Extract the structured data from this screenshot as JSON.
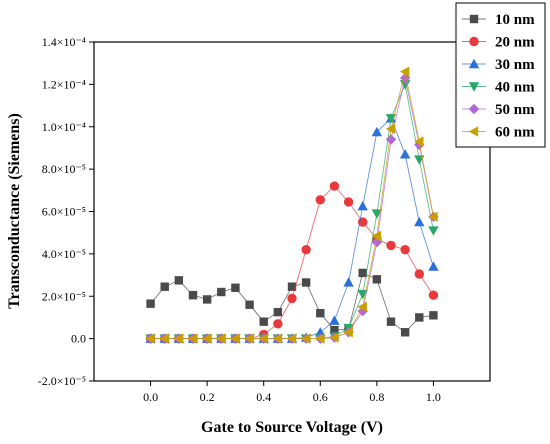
{
  "chart_data": {
    "type": "line",
    "xlabel": "Gate to Source Voltage (V)",
    "ylabel": "Transconductance (Siemens)",
    "xlim": [
      -0.2,
      1.2
    ],
    "ylim": [
      -2e-05,
      0.00014
    ],
    "x_ticks": [
      "0.0",
      "0.2",
      "0.4",
      "0.6",
      "0.8",
      "1.0"
    ],
    "x_tick_values": [
      0.0,
      0.2,
      0.4,
      0.6,
      0.8,
      1.0
    ],
    "y_ticks": [
      "-2.0×10⁻⁵",
      "0.0",
      "2.0×10⁻⁵",
      "4.0×10⁻⁵",
      "6.0×10⁻⁵",
      "8.0×10⁻⁵",
      "1.0×10⁻⁴",
      "1.2×10⁻⁴",
      "1.4×10⁻⁴"
    ],
    "y_tick_values": [
      -2e-05,
      0.0,
      2e-05,
      4e-05,
      6e-05,
      8e-05,
      0.0001,
      0.00012,
      0.00014
    ],
    "legend_position": "top-right",
    "x": [
      0.0,
      0.05,
      0.1,
      0.15,
      0.2,
      0.25,
      0.3,
      0.35,
      0.4,
      0.45,
      0.5,
      0.55,
      0.6,
      0.65,
      0.7,
      0.75,
      0.8,
      0.85,
      0.9,
      0.95,
      1.0
    ],
    "series": [
      {
        "name": "10 nm",
        "color": "#4a4a4a",
        "marker": "square",
        "values": [
          1.65e-05,
          2.45e-05,
          2.75e-05,
          2.05e-05,
          1.85e-05,
          2.2e-05,
          2.4e-05,
          1.6e-05,
          8e-06,
          1.25e-05,
          2.45e-05,
          2.65e-05,
          1.2e-05,
          4e-06,
          4.5e-06,
          3.1e-05,
          2.8e-05,
          8e-06,
          3e-06,
          1e-05,
          1.1e-05
        ]
      },
      {
        "name": "20 nm",
        "color": "#e8393c",
        "marker": "circle",
        "values": [
          0.0,
          0.0,
          0.0,
          0.0,
          0.0,
          0.0,
          0.0,
          0.0,
          2e-06,
          7e-06,
          1.9e-05,
          4.2e-05,
          6.55e-05,
          7.2e-05,
          6.45e-05,
          5.5e-05,
          4.7e-05,
          4.4e-05,
          4.2e-05,
          3.05e-05,
          2.05e-05
        ]
      },
      {
        "name": "30 nm",
        "color": "#2a6fdb",
        "marker": "triangle-up",
        "values": [
          0.0,
          0.0,
          0.0,
          0.0,
          0.0,
          0.0,
          0.0,
          0.0,
          0.0,
          0.0,
          0.0,
          5e-07,
          3e-06,
          8.5e-06,
          2.65e-05,
          6.25e-05,
          9.75e-05,
          0.000104,
          8.7e-05,
          5.5e-05,
          3.4e-05
        ]
      },
      {
        "name": "40 nm",
        "color": "#2aa86a",
        "marker": "triangle-down",
        "values": [
          0.0,
          0.0,
          0.0,
          0.0,
          0.0,
          0.0,
          0.0,
          0.0,
          0.0,
          0.0,
          0.0,
          0.0,
          0.0,
          1e-06,
          5e-06,
          2.1e-05,
          5.9e-05,
          0.000104,
          0.00012,
          8.45e-05,
          5.1e-05
        ]
      },
      {
        "name": "50 nm",
        "color": "#b065d9",
        "marker": "diamond",
        "values": [
          0.0,
          0.0,
          0.0,
          0.0,
          0.0,
          0.0,
          0.0,
          0.0,
          0.0,
          0.0,
          0.0,
          0.0,
          0.0,
          5e-07,
          3e-06,
          1.3e-05,
          4.55e-05,
          9.4e-05,
          0.000123,
          9.15e-05,
          5.75e-05
        ]
      },
      {
        "name": "60 nm",
        "color": "#c9a000",
        "marker": "triangle-left",
        "values": [
          0.0,
          0.0,
          0.0,
          0.0,
          0.0,
          0.0,
          0.0,
          0.0,
          0.0,
          0.0,
          0.0,
          0.0,
          0.0,
          5e-07,
          3e-06,
          1.5e-05,
          4.85e-05,
          9.9e-05,
          0.000126,
          9.3e-05,
          5.75e-05
        ]
      }
    ]
  }
}
